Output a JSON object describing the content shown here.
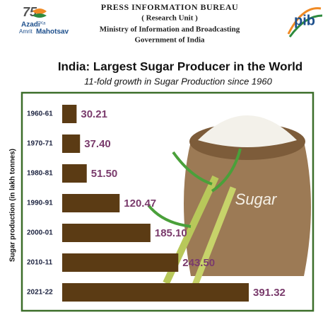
{
  "header": {
    "logo_number": "75",
    "logo_line1": "Azadi",
    "logo_ka": "Ka",
    "logo_line2": "Amrit",
    "logo_line3": "Mahotsav",
    "bureau": "PRESS INFORMATION BUREAU",
    "unit": "( Research Unit )",
    "ministry": "Ministry of Information and Broadcasting",
    "government": "Government of India",
    "right_logo": "pib"
  },
  "illustration": {
    "label": "Sugar"
  },
  "chart_data": {
    "type": "barh",
    "title": "India: Largest Sugar Producer in the World",
    "subtitle": "11-fold growth in Sugar Production since 1960",
    "y_label": "Sugar production (in lakh tonnes)",
    "categories": [
      "1960-61",
      "1970-71",
      "1980-81",
      "1990-91",
      "2000-01",
      "2010-11",
      "2021-22"
    ],
    "values": [
      30.21,
      37.4,
      51.5,
      120.47,
      185.1,
      243.5,
      391.32
    ],
    "value_labels": [
      "30.21",
      "37.40",
      "51.50",
      "120.47",
      "185.10",
      "243.50",
      "391.32"
    ],
    "color": "#5b3b14"
  }
}
